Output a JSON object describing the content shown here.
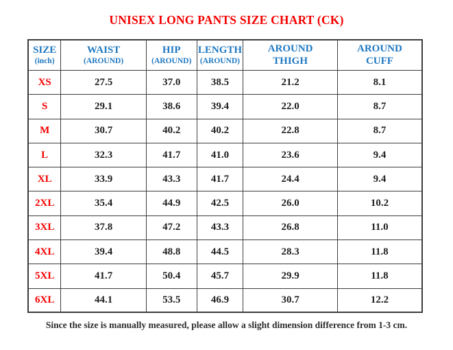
{
  "title": "UNISEX LONG PANTS SIZE CHART (CK)",
  "footer": "Since the size is manually measured, please allow a slight dimension difference from 1-3 cm.",
  "colors": {
    "title_red": "#f40000",
    "header_blue": "#1e78c2",
    "size_label_red": "#f40000",
    "value_text": "#1e1e1e",
    "border": "#3c3c3c",
    "background": "#ffffff"
  },
  "table": {
    "columns": [
      {
        "line1": "SIZE",
        "line2": "(inch)"
      },
      {
        "line1": "WAIST",
        "line2": "(AROUND)"
      },
      {
        "line1": "HIP",
        "line2": "(AROUND)"
      },
      {
        "line1": "LENGTH",
        "line2": "(AROUND)"
      },
      {
        "line1": "AROUND",
        "line2": "THIGH"
      },
      {
        "line1": "AROUND",
        "line2": "CUFF"
      }
    ],
    "column_widths_pct": [
      8.32,
      21.66,
      12.82,
      11.79,
      23.92,
      21.49
    ],
    "rows": [
      {
        "size": "XS",
        "values": [
          "27.5",
          "37.0",
          "38.5",
          "21.2",
          "8.1"
        ]
      },
      {
        "size": "S",
        "values": [
          "29.1",
          "38.6",
          "39.4",
          "22.0",
          "8.7"
        ]
      },
      {
        "size": "M",
        "values": [
          "30.7",
          "40.2",
          "40.2",
          "22.8",
          "8.7"
        ]
      },
      {
        "size": "L",
        "values": [
          "32.3",
          "41.7",
          "41.0",
          "23.6",
          "9.4"
        ]
      },
      {
        "size": "XL",
        "values": [
          "33.9",
          "43.3",
          "41.7",
          "24.4",
          "9.4"
        ]
      },
      {
        "size": "2XL",
        "values": [
          "35.4",
          "44.9",
          "42.5",
          "26.0",
          "10.2"
        ]
      },
      {
        "size": "3XL",
        "values": [
          "37.8",
          "47.2",
          "43.3",
          "26.8",
          "11.0"
        ]
      },
      {
        "size": "4XL",
        "values": [
          "39.4",
          "48.8",
          "44.5",
          "28.3",
          "11.8"
        ]
      },
      {
        "size": "5XL",
        "values": [
          "41.7",
          "50.4",
          "45.7",
          "29.9",
          "11.8"
        ]
      },
      {
        "size": "6XL",
        "values": [
          "44.1",
          "53.5",
          "46.9",
          "30.7",
          "12.2"
        ]
      }
    ]
  }
}
